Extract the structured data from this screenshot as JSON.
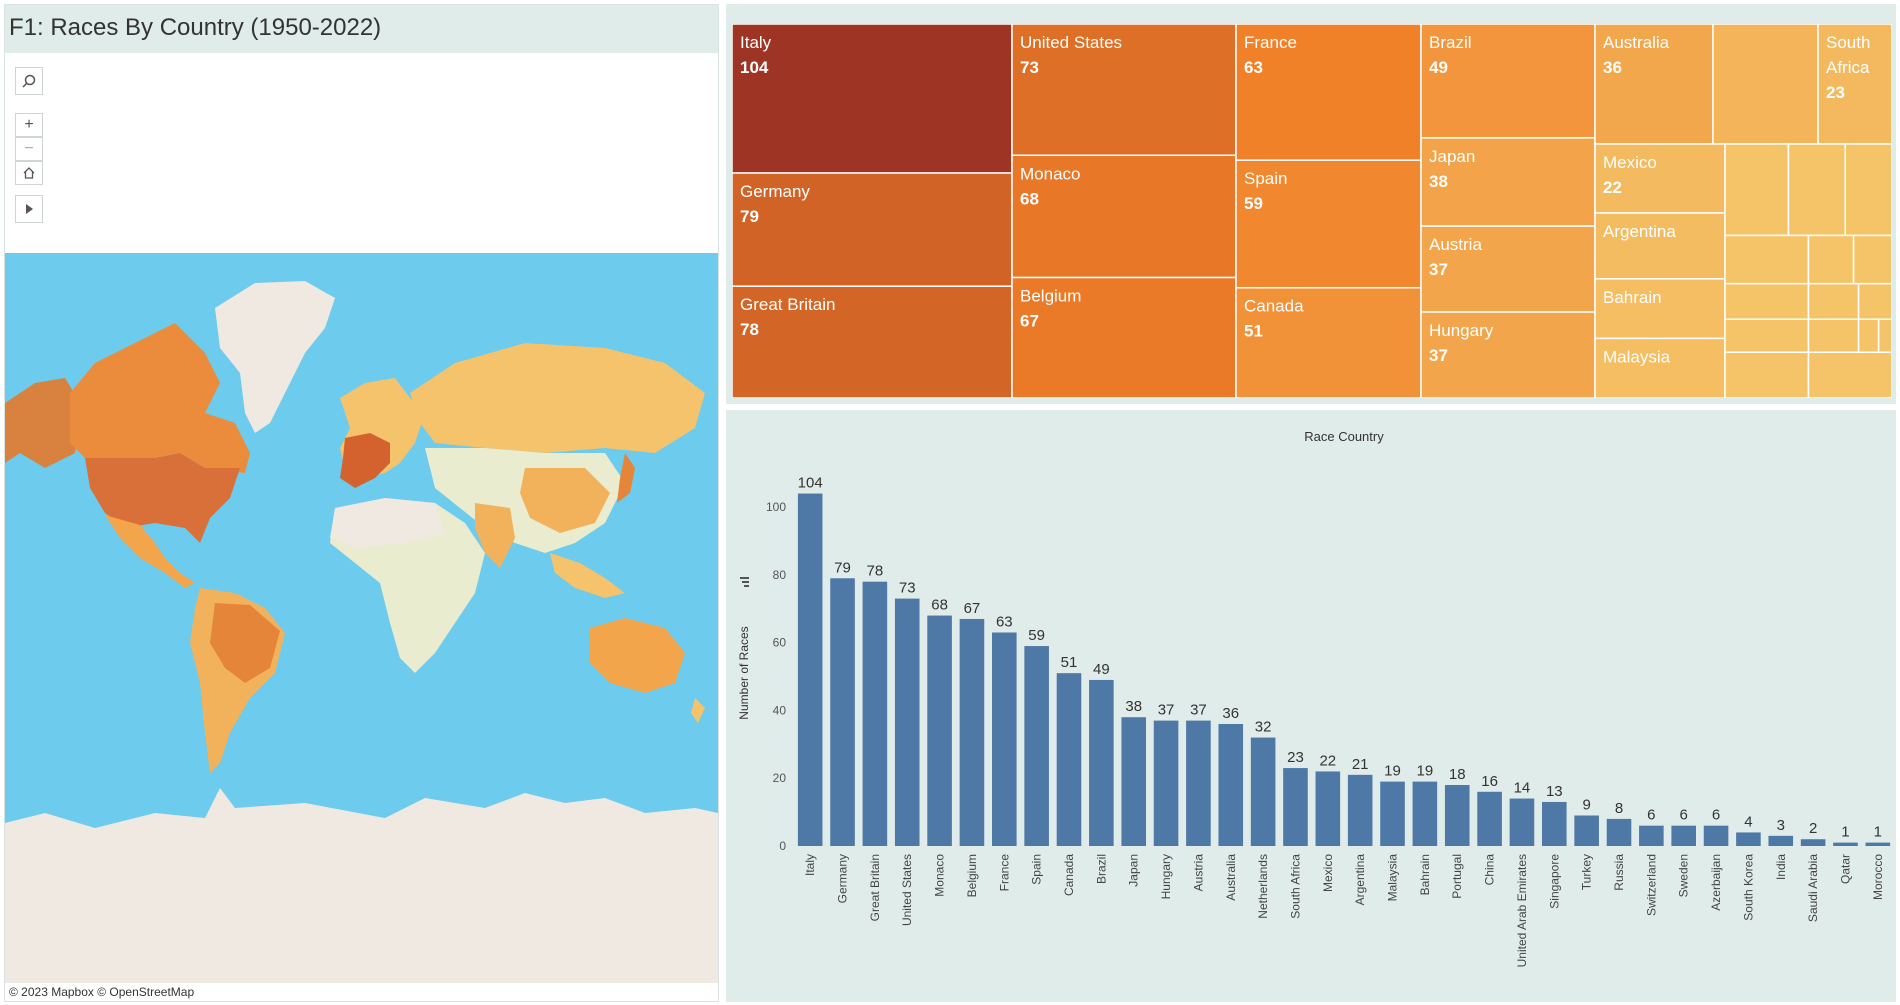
{
  "dashboard": {
    "title": "F1: Races By Country (1950-2022)",
    "attribution": "© 2023 Mapbox  © OpenStreetMap"
  },
  "map_controls": {
    "search_icon": "search-icon",
    "zoom_in": "+",
    "zoom_out": "−",
    "home_icon": "home-icon",
    "play_icon": "play-icon"
  },
  "colors": {
    "ocean": "#6dcbee",
    "land_base": "#efe9e1",
    "bar": "#4e79a7",
    "panel_bg": "#e0ece9"
  },
  "chart_data": [
    {
      "type": "treemap",
      "title": "",
      "items": [
        {
          "label": "Italy",
          "value": 104,
          "display": "104"
        },
        {
          "label": "Germany",
          "value": 79,
          "display": "79"
        },
        {
          "label": "Great Britain",
          "value": 78,
          "display": "78"
        },
        {
          "label": "United States",
          "value": 73,
          "display": "73"
        },
        {
          "label": "Monaco",
          "value": 68,
          "display": "68"
        },
        {
          "label": "Belgium",
          "value": 67,
          "display": "67"
        },
        {
          "label": "France",
          "value": 63,
          "display": "63"
        },
        {
          "label": "Spain",
          "value": 59,
          "display": "59"
        },
        {
          "label": "Canada",
          "value": 51,
          "display": "51"
        },
        {
          "label": "Brazil",
          "value": 49,
          "display": "49"
        },
        {
          "label": "Japan",
          "value": 38,
          "display": "38"
        },
        {
          "label": "Austria",
          "value": 37,
          "display": "37"
        },
        {
          "label": "Hungary",
          "value": 37,
          "display": "37"
        },
        {
          "label": "Australia",
          "value": 36,
          "display": "36"
        },
        {
          "label": "South Africa",
          "value": 23,
          "display": "23"
        },
        {
          "label": "Mexico",
          "value": 22,
          "display": "22"
        },
        {
          "label": "Argentina",
          "value": 21,
          "display": ""
        },
        {
          "label": "Bahrain",
          "value": 19,
          "display": ""
        },
        {
          "label": "Malaysia",
          "value": 19,
          "display": ""
        }
      ]
    },
    {
      "type": "bar",
      "title": "Race Country",
      "xlabel": "",
      "ylabel": "Number of Races",
      "ylim": [
        0,
        105
      ],
      "yticks": [
        0,
        20,
        40,
        60,
        80,
        100
      ],
      "categories": [
        "Italy",
        "Germany",
        "Great Britain",
        "United States",
        "Monaco",
        "Belgium",
        "France",
        "Spain",
        "Canada",
        "Brazil",
        "Japan",
        "Hungary",
        "Austria",
        "Australia",
        "Netherlands",
        "South Africa",
        "Mexico",
        "Argentina",
        "Malaysia",
        "Bahrain",
        "Portugal",
        "China",
        "United Arab Emirates",
        "Singapore",
        "Turkey",
        "Russia",
        "Switzerland",
        "Sweden",
        "Azerbaijan",
        "South Korea",
        "India",
        "Saudi Arabia",
        "Qatar",
        "Morocco"
      ],
      "values": [
        104,
        79,
        78,
        73,
        68,
        67,
        63,
        59,
        51,
        49,
        38,
        37,
        37,
        36,
        32,
        23,
        22,
        21,
        19,
        19,
        18,
        16,
        14,
        13,
        9,
        8,
        6,
        6,
        6,
        4,
        3,
        2,
        1,
        1
      ]
    }
  ]
}
